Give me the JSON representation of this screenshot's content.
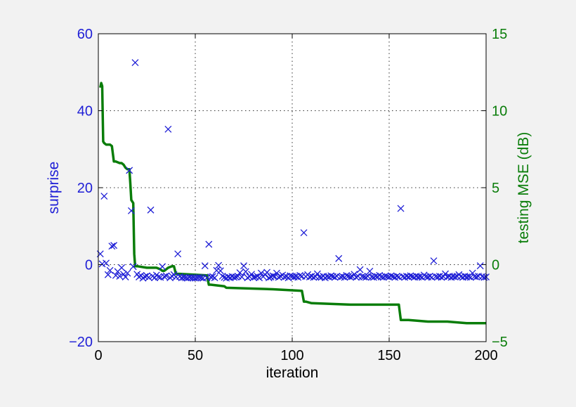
{
  "chart_data": {
    "type": "scatter+line",
    "xlabel": "iteration",
    "ylabel_left": "surprise",
    "ylabel_right": "testing MSE (dB)",
    "xlim": [
      0,
      200
    ],
    "ylim_left": [
      -20,
      60
    ],
    "ylim_right": [
      -5,
      15
    ],
    "x_ticks": [
      0,
      50,
      100,
      150,
      200
    ],
    "left_ticks": [
      -20,
      0,
      20,
      40,
      60
    ],
    "right_ticks": [
      -5,
      0,
      5,
      10,
      15
    ],
    "x_tick_labels": [
      "0",
      "50",
      "100",
      "150",
      "200"
    ],
    "left_tick_labels": [
      "−20",
      "0",
      "20",
      "40",
      "60"
    ],
    "right_tick_labels": [
      "−5",
      "0",
      "5",
      "10",
      "15"
    ],
    "grid": "dotted",
    "colors": {
      "surprise": "#1f1fd6",
      "mse": "#0a7d0a",
      "grid": "#333333",
      "axis": "#000000"
    },
    "series": [
      {
        "name": "surprise",
        "kind": "scatter",
        "marker": "x",
        "axis": "left",
        "points": [
          [
            1,
            2.8
          ],
          [
            2,
            0.2
          ],
          [
            3,
            17.8
          ],
          [
            4,
            0.4
          ],
          [
            5,
            -2.6
          ],
          [
            6,
            -1.5
          ],
          [
            7,
            4.8
          ],
          [
            8,
            5
          ],
          [
            9,
            -2.8
          ],
          [
            10,
            -1.8
          ],
          [
            11,
            -3
          ],
          [
            12,
            -0.8
          ],
          [
            13,
            -2.5
          ],
          [
            14,
            -3.2
          ],
          [
            15,
            -2.2
          ],
          [
            16,
            24.5
          ],
          [
            17,
            14
          ],
          [
            18,
            -0.5
          ],
          [
            19,
            52.5
          ],
          [
            20,
            -2.5
          ],
          [
            21,
            -3.2
          ],
          [
            22,
            -2.8
          ],
          [
            23,
            -3.5
          ],
          [
            24,
            -3.1
          ],
          [
            25,
            -2.9
          ],
          [
            26,
            -3.3
          ],
          [
            27,
            14.2
          ],
          [
            28,
            -3
          ],
          [
            29,
            -3.4
          ],
          [
            30,
            -2.7
          ],
          [
            31,
            -3.2
          ],
          [
            32,
            -3.3
          ],
          [
            33,
            -0.5
          ],
          [
            34,
            -3.1
          ],
          [
            35,
            -2.9
          ],
          [
            36,
            35.2
          ],
          [
            37,
            -3.4
          ],
          [
            38,
            -3
          ],
          [
            39,
            -2.6
          ],
          [
            40,
            -3.2
          ],
          [
            41,
            2.8
          ],
          [
            42,
            -3.1
          ],
          [
            43,
            -3.4
          ],
          [
            44,
            -3.3
          ],
          [
            45,
            -3.4
          ],
          [
            46,
            -3.5
          ],
          [
            47,
            -3.3
          ],
          [
            48,
            -3.4
          ],
          [
            49,
            -3.4
          ],
          [
            50,
            -3.5
          ],
          [
            51,
            -3.4
          ],
          [
            52,
            -3.3
          ],
          [
            53,
            -3.4
          ],
          [
            54,
            -3.5
          ],
          [
            55,
            -0.3
          ],
          [
            56,
            -3.4
          ],
          [
            57,
            5.3
          ],
          [
            58,
            -3.2
          ],
          [
            59,
            -3.1
          ],
          [
            60,
            -3.4
          ],
          [
            61,
            -1.5
          ],
          [
            62,
            -0.2
          ],
          [
            63,
            -1.6
          ],
          [
            64,
            -3
          ],
          [
            65,
            -3.3
          ],
          [
            66,
            -3.5
          ],
          [
            67,
            -3.2
          ],
          [
            68,
            -3.4
          ],
          [
            69,
            -3.1
          ],
          [
            70,
            -3.3
          ],
          [
            71,
            -3.2
          ],
          [
            72,
            -3
          ],
          [
            73,
            -2.1
          ],
          [
            74,
            -3.2
          ],
          [
            75,
            -0.3
          ],
          [
            76,
            -1.8
          ],
          [
            77,
            -3.4
          ],
          [
            78,
            -3.1
          ],
          [
            79,
            -2.5
          ],
          [
            80,
            -3.3
          ],
          [
            81,
            -3.2
          ],
          [
            82,
            -3
          ],
          [
            83,
            -3.4
          ],
          [
            84,
            -2.2
          ],
          [
            85,
            -3.1
          ],
          [
            86,
            -2.6
          ],
          [
            87,
            -2
          ],
          [
            88,
            -3.4
          ],
          [
            89,
            -3.2
          ],
          [
            90,
            -2.9
          ],
          [
            91,
            -3.1
          ],
          [
            92,
            -2.2
          ],
          [
            93,
            -3.3
          ],
          [
            94,
            -3
          ],
          [
            95,
            -2.7
          ],
          [
            96,
            -3.2
          ],
          [
            97,
            -3.1
          ],
          [
            98,
            -3.4
          ],
          [
            99,
            -2.9
          ],
          [
            100,
            -3
          ],
          [
            101,
            -3.2
          ],
          [
            102,
            -3.1
          ],
          [
            103,
            -3.3
          ],
          [
            104,
            -2.8
          ],
          [
            105,
            -3
          ],
          [
            106,
            8.3
          ],
          [
            107,
            -3.1
          ],
          [
            108,
            -2.6
          ],
          [
            109,
            -3.2
          ],
          [
            110,
            -3
          ],
          [
            111,
            -3.3
          ],
          [
            112,
            -3.1
          ],
          [
            113,
            -2.4
          ],
          [
            114,
            -3.2
          ],
          [
            115,
            -3.3
          ],
          [
            116,
            -3
          ],
          [
            117,
            -3.4
          ],
          [
            118,
            -3.1
          ],
          [
            119,
            -3.2
          ],
          [
            120,
            -2.9
          ],
          [
            121,
            -3.1
          ],
          [
            122,
            -3.3
          ],
          [
            123,
            -3
          ],
          [
            124,
            1.6
          ],
          [
            125,
            -3.2
          ],
          [
            126,
            -3.1
          ],
          [
            127,
            -3.3
          ],
          [
            128,
            -2.8
          ],
          [
            129,
            -3
          ],
          [
            130,
            -3.2
          ],
          [
            131,
            -3.1
          ],
          [
            132,
            -2.5
          ],
          [
            133,
            -3.3
          ],
          [
            134,
            -3
          ],
          [
            135,
            -1.3
          ],
          [
            136,
            -3.1
          ],
          [
            137,
            -3.2
          ],
          [
            138,
            -3.3
          ],
          [
            139,
            -3
          ],
          [
            140,
            -1.7
          ],
          [
            141,
            -3.2
          ],
          [
            142,
            -3.3
          ],
          [
            143,
            -3
          ],
          [
            144,
            -3.1
          ],
          [
            145,
            -2.8
          ],
          [
            146,
            -3.2
          ],
          [
            147,
            -3.3
          ],
          [
            148,
            -3
          ],
          [
            149,
            -3.1
          ],
          [
            150,
            -3.2
          ],
          [
            151,
            -2.9
          ],
          [
            152,
            -3.1
          ],
          [
            153,
            -3.3
          ],
          [
            154,
            -3
          ],
          [
            155,
            -3.2
          ],
          [
            156,
            14.6
          ],
          [
            157,
            -3.1
          ],
          [
            158,
            -3.3
          ],
          [
            159,
            -3
          ],
          [
            160,
            -3.2
          ],
          [
            161,
            -2.9
          ],
          [
            162,
            -3.1
          ],
          [
            163,
            -3.3
          ],
          [
            164,
            -3
          ],
          [
            165,
            -3.2
          ],
          [
            166,
            -3.1
          ],
          [
            167,
            -3.3
          ],
          [
            168,
            -2.7
          ],
          [
            169,
            -3.1
          ],
          [
            170,
            -3.2
          ],
          [
            171,
            -3
          ],
          [
            172,
            -3.3
          ],
          [
            173,
            1
          ],
          [
            174,
            -3.1
          ],
          [
            175,
            -3.2
          ],
          [
            176,
            -3
          ],
          [
            177,
            -3.3
          ],
          [
            178,
            -3.1
          ],
          [
            179,
            -2.4
          ],
          [
            180,
            -3.2
          ],
          [
            181,
            -3
          ],
          [
            182,
            -3.3
          ],
          [
            183,
            -3.1
          ],
          [
            184,
            -3.2
          ],
          [
            185,
            -3
          ],
          [
            186,
            -2.6
          ],
          [
            187,
            -3.1
          ],
          [
            188,
            -3.3
          ],
          [
            189,
            -3
          ],
          [
            190,
            -3.2
          ],
          [
            191,
            -3.1
          ],
          [
            192,
            -3.3
          ],
          [
            193,
            -2.2
          ],
          [
            194,
            -3.1
          ],
          [
            195,
            -3.2
          ],
          [
            196,
            -3
          ],
          [
            197,
            -0.3
          ],
          [
            198,
            -3.1
          ],
          [
            199,
            -3.3
          ],
          [
            200,
            -3.2
          ]
        ]
      },
      {
        "name": "testing MSE (dB)",
        "kind": "line",
        "axis": "right",
        "x": [
          1,
          1.5,
          2,
          2.5,
          3,
          4,
          6,
          7,
          8,
          9,
          11,
          12,
          13,
          14,
          15,
          16,
          16.5,
          17,
          18,
          18.5,
          19,
          20,
          25,
          30,
          32,
          33,
          34,
          35,
          36,
          38,
          39,
          40,
          41,
          42,
          56,
          57,
          58,
          65,
          66,
          90,
          105,
          106,
          107,
          110,
          130,
          155,
          156,
          157,
          160,
          170,
          180,
          190,
          200
        ],
        "y": [
          11.5,
          11.8,
          11.6,
          8.0,
          7.9,
          7.8,
          7.8,
          7.7,
          6.7,
          6.7,
          6.6,
          6.6,
          6.5,
          6.3,
          6.2,
          6.2,
          5.3,
          4.2,
          4.0,
          0.7,
          -0.1,
          -0.1,
          -0.2,
          -0.2,
          -0.3,
          -0.4,
          -0.4,
          -0.3,
          -0.2,
          -0.1,
          -0.1,
          -0.6,
          -0.6,
          -0.6,
          -0.7,
          -1.3,
          -1.3,
          -1.4,
          -1.5,
          -1.6,
          -1.7,
          -2.4,
          -2.4,
          -2.5,
          -2.6,
          -2.6,
          -3.6,
          -3.6,
          -3.6,
          -3.7,
          -3.7,
          -3.8,
          -3.8
        ]
      }
    ]
  }
}
